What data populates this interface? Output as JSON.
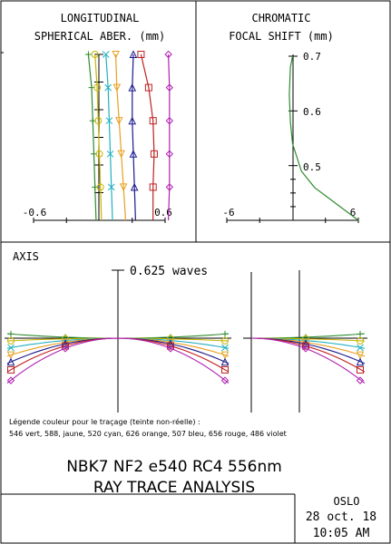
{
  "header": {
    "lsa_title_line1": "LONGITUDINAL",
    "lsa_title_line2": "SPHERICAL ABER. (mm)",
    "cfs_title_line1": "CHROMATIC",
    "cfs_title_line2": "FOCAL SHIFT (mm)",
    "axis_label": "AXIS",
    "waves_label": "0.625 waves"
  },
  "legend": {
    "line1": "Légende couleur pour le traçage (teinte non-réelle) :",
    "line2": "546 vert, 588, jaune, 520 cyan, 626 orange, 507 bleu, 656 rouge, 486 violet"
  },
  "footer": {
    "lens_line": "NBK7 NF2 e540 RC4 556nm",
    "analysis_line": "RAY TRACE ANALYSIS",
    "program": "OSLO",
    "date": "28 oct. 18",
    "time": "10:05 AM"
  },
  "colors": {
    "546": "#2e8b2e",
    "588": "#c8b400",
    "520": "#20b0c0",
    "626": "#e8a020",
    "507": "#1a1a8c",
    "656": "#c02020",
    "486": "#b020b0"
  },
  "chart_data": [
    {
      "type": "line",
      "title": "LONGITUDINAL SPHERICAL ABER. (mm)",
      "xlim": [
        -0.6,
        0.6
      ],
      "ylim": [
        0,
        1
      ],
      "x_tick_labels": [
        "-0.6",
        "0.6"
      ],
      "series": [
        {
          "name": "546",
          "color": "#2e8b2e",
          "marker": "plus",
          "points": [
            [
              -0.03,
              0
            ],
            [
              -0.04,
              0.2
            ],
            [
              -0.05,
              0.4
            ],
            [
              -0.06,
              0.6
            ],
            [
              -0.07,
              0.8
            ],
            [
              -0.1,
              1
            ]
          ]
        },
        {
          "name": "588",
          "color": "#c8b400",
          "marker": "circle",
          "points": [
            [
              0.02,
              0
            ],
            [
              0.01,
              0.2
            ],
            [
              0.0,
              0.4
            ],
            [
              -0.01,
              0.6
            ],
            [
              -0.02,
              0.8
            ],
            [
              -0.04,
              1
            ]
          ]
        },
        {
          "name": "520",
          "color": "#20b0c0",
          "marker": "x",
          "points": [
            [
              0.12,
              0
            ],
            [
              0.11,
              0.2
            ],
            [
              0.1,
              0.4
            ],
            [
              0.09,
              0.6
            ],
            [
              0.08,
              0.8
            ],
            [
              0.06,
              1
            ]
          ]
        },
        {
          "name": "626",
          "color": "#e8a020",
          "marker": "triangle-down",
          "points": [
            [
              0.24,
              0
            ],
            [
              0.22,
              0.2
            ],
            [
              0.2,
              0.4
            ],
            [
              0.18,
              0.6
            ],
            [
              0.16,
              0.8
            ],
            [
              0.15,
              1
            ]
          ]
        },
        {
          "name": "507",
          "color": "#1a1a8c",
          "marker": "triangle-up",
          "points": [
            [
              0.33,
              0
            ],
            [
              0.32,
              0.2
            ],
            [
              0.31,
              0.4
            ],
            [
              0.3,
              0.6
            ],
            [
              0.3,
              0.8
            ],
            [
              0.31,
              1
            ]
          ]
        },
        {
          "name": "656",
          "color": "#c02020",
          "marker": "square",
          "points": [
            [
              0.49,
              0
            ],
            [
              0.49,
              0.2
            ],
            [
              0.5,
              0.4
            ],
            [
              0.49,
              0.6
            ],
            [
              0.45,
              0.8
            ],
            [
              0.38,
              1
            ]
          ]
        },
        {
          "name": "486",
          "color": "#b020b0",
          "marker": "diamond",
          "points": [
            [
              0.63,
              0
            ],
            [
              0.64,
              0.2
            ],
            [
              0.64,
              0.4
            ],
            [
              0.64,
              0.6
            ],
            [
              0.64,
              0.8
            ],
            [
              0.63,
              1
            ]
          ]
        }
      ]
    },
    {
      "type": "line",
      "title": "CHROMATIC FOCAL SHIFT (mm)",
      "xlim": [
        -6,
        6
      ],
      "ylim": [
        0.4,
        0.7
      ],
      "x_tick_labels": [
        "-6",
        "6"
      ],
      "y_tick_labels": [
        "0.5",
        "0.6",
        "0.7"
      ],
      "series": [
        {
          "name": "focal shift",
          "color": "#2e8b2e",
          "points": [
            [
              6,
              0.4
            ],
            [
              4,
              0.43
            ],
            [
              2,
              0.46
            ],
            [
              0.8,
              0.49
            ],
            [
              0,
              0.54
            ],
            [
              -0.2,
              0.58
            ],
            [
              -0.3,
              0.63
            ],
            [
              -0.2,
              0.68
            ],
            [
              0,
              0.7
            ]
          ]
        }
      ]
    },
    {
      "type": "line",
      "title": "0.625 waves",
      "xlim": [
        -1,
        1
      ],
      "ylim": [
        -1,
        0.1
      ],
      "series": [
        {
          "name": "546",
          "color": "#2e8b2e",
          "marker": "plus",
          "values": [
            0.08,
            0.0
          ]
        },
        {
          "name": "588",
          "color": "#c8b400",
          "marker": "circle",
          "values": [
            -0.05,
            0.0
          ]
        },
        {
          "name": "520",
          "color": "#20b0c0",
          "marker": "x",
          "values": [
            -0.18,
            0.0
          ]
        },
        {
          "name": "626",
          "color": "#e8a020",
          "marker": "triangle-down",
          "values": [
            -0.32,
            0.0
          ]
        },
        {
          "name": "507",
          "color": "#1a1a8c",
          "marker": "triangle-up",
          "values": [
            -0.45,
            0.0
          ]
        },
        {
          "name": "656",
          "color": "#c02020",
          "marker": "square",
          "values": [
            -0.6,
            0.0
          ]
        },
        {
          "name": "486",
          "color": "#b020b0",
          "marker": "diamond",
          "values": [
            -0.8,
            0.0
          ]
        }
      ]
    }
  ]
}
